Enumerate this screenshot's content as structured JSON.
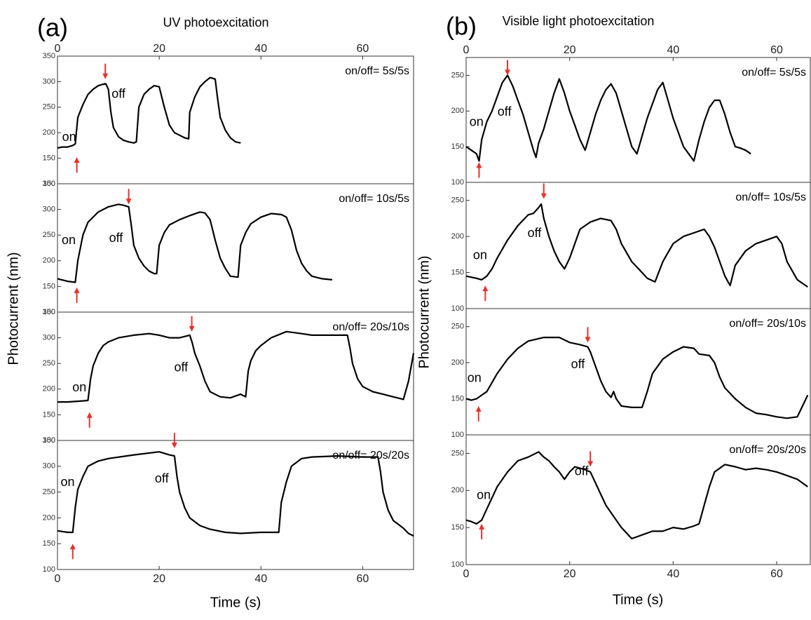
{
  "figure": {
    "columns": [
      {
        "label": "(a)",
        "title": "UV photoexcitation",
        "ylabel": "Photocurrent (nm)",
        "xlabel": "Time (s)"
      },
      {
        "label": "(b)",
        "title": "Visible light photoexcitation",
        "ylabel": "Photocurrent (nm)",
        "xlabel": "Time (s)"
      }
    ]
  },
  "chart_data": [
    {
      "type": "line",
      "annotation": "on/off= 5s/5s",
      "xlim": [
        0,
        70
      ],
      "ylim": [
        100,
        350
      ],
      "yticks": [
        100,
        150,
        200,
        250,
        300,
        350
      ],
      "xticks": [
        0,
        20,
        40,
        60
      ],
      "xtick_position": "top",
      "x": [
        0,
        1,
        2,
        3,
        3.5,
        4,
        5,
        6,
        7,
        8,
        9,
        9.5,
        10,
        10.5,
        11,
        12,
        13,
        14,
        15,
        15.5,
        16,
        17,
        18,
        19,
        20,
        21,
        22,
        23,
        24,
        25,
        25.8,
        26,
        27,
        28,
        29,
        30,
        31,
        31.5,
        32,
        33,
        34,
        35,
        36
      ],
      "series": [
        {
          "color": "#000000",
          "values": [
            170,
            172,
            172,
            175,
            178,
            230,
            255,
            275,
            285,
            292,
            295,
            296,
            285,
            240,
            210,
            192,
            185,
            182,
            180,
            182,
            250,
            275,
            285,
            292,
            290,
            250,
            215,
            200,
            195,
            190,
            188,
            240,
            270,
            290,
            300,
            308,
            305,
            265,
            230,
            205,
            190,
            182,
            180
          ]
        }
      ],
      "labels": [
        {
          "text": "on",
          "x": 2.3,
          "y": 190
        },
        {
          "text": "off",
          "x": 12,
          "y": 275
        }
      ],
      "arrows": [
        {
          "x": 3.8,
          "y": 152,
          "direction": "up",
          "color": "#e8302a"
        },
        {
          "x": 9.4,
          "y": 305,
          "direction": "down",
          "color": "#e8302a"
        }
      ]
    },
    {
      "type": "line",
      "annotation": "on/off= 10s/5s",
      "xlim": [
        0,
        70
      ],
      "ylim": [
        100,
        350
      ],
      "yticks": [
        100,
        150,
        200,
        250,
        300,
        350
      ],
      "x": [
        0,
        2,
        3.5,
        4,
        5,
        6,
        7,
        8,
        10,
        12,
        13,
        14,
        14.5,
        15,
        16,
        17,
        18,
        19,
        19.5,
        20,
        21,
        22,
        24,
        26,
        28,
        29,
        30,
        31,
        32,
        33,
        34,
        35.5,
        36,
        37,
        38,
        40,
        42,
        44,
        45,
        46,
        47,
        48,
        49,
        50,
        52,
        54
      ],
      "series": [
        {
          "color": "#000000",
          "values": [
            165,
            160,
            158,
            200,
            250,
            275,
            285,
            295,
            305,
            310,
            308,
            305,
            270,
            230,
            205,
            190,
            180,
            175,
            175,
            230,
            255,
            270,
            280,
            288,
            295,
            293,
            280,
            240,
            205,
            185,
            170,
            168,
            230,
            255,
            272,
            285,
            292,
            290,
            285,
            260,
            220,
            195,
            180,
            170,
            165,
            163
          ]
        }
      ],
      "labels": [
        {
          "text": "on",
          "x": 2.2,
          "y": 239
        },
        {
          "text": "off",
          "x": 11.5,
          "y": 243
        }
      ],
      "arrows": [
        {
          "x": 3.8,
          "y": 148,
          "direction": "up",
          "color": "#e8302a"
        },
        {
          "x": 14,
          "y": 310,
          "direction": "down",
          "color": "#e8302a"
        }
      ]
    },
    {
      "type": "line",
      "annotation": "on/off= 20s/10s",
      "xlim": [
        0,
        70
      ],
      "ylim": [
        100,
        350
      ],
      "yticks": [
        100,
        150,
        200,
        250,
        300,
        350
      ],
      "x": [
        0,
        2,
        5,
        6,
        6.5,
        7,
        8,
        9,
        10,
        12,
        15,
        18,
        20,
        22,
        24,
        26,
        26.5,
        27,
        28,
        29,
        30,
        32,
        34,
        36,
        37,
        37.5,
        38,
        39,
        40,
        42,
        45,
        48,
        50,
        52,
        54,
        57,
        57.5,
        58,
        59,
        60,
        62,
        64,
        66,
        68,
        69,
        70
      ],
      "series": [
        {
          "color": "#000000",
          "values": [
            175,
            175,
            177,
            178,
            220,
            245,
            270,
            285,
            292,
            300,
            305,
            308,
            305,
            300,
            300,
            305,
            290,
            270,
            245,
            215,
            195,
            185,
            183,
            190,
            185,
            235,
            255,
            275,
            285,
            300,
            312,
            308,
            305,
            305,
            305,
            305,
            280,
            250,
            220,
            205,
            195,
            190,
            185,
            180,
            215,
            270
          ]
        }
      ],
      "labels": [
        {
          "text": "on",
          "x": 4.3,
          "y": 202
        },
        {
          "text": "off",
          "x": 24.3,
          "y": 241
        }
      ],
      "arrows": [
        {
          "x": 6.3,
          "y": 155,
          "direction": "up",
          "color": "#e8302a"
        },
        {
          "x": 26.4,
          "y": 312,
          "direction": "down",
          "color": "#e8302a"
        }
      ]
    },
    {
      "type": "line",
      "annotation": "on/off= 20s/20s",
      "xlim": [
        0,
        70
      ],
      "ylim": [
        100,
        350
      ],
      "yticks": [
        100,
        150,
        200,
        250,
        300,
        350
      ],
      "xticks": [
        0,
        20,
        40,
        60
      ],
      "xtick_position": "bottom",
      "x": [
        0,
        2,
        3,
        3.5,
        4,
        5,
        6,
        8,
        10,
        15,
        20,
        22,
        23,
        23.5,
        24,
        25,
        26,
        28,
        30,
        33,
        36,
        40,
        43.5,
        44,
        45,
        46,
        48,
        50,
        55,
        60,
        63,
        63.5,
        64,
        65,
        66,
        68,
        69,
        70
      ],
      "series": [
        {
          "color": "#000000",
          "values": [
            175,
            172,
            172,
            220,
            255,
            280,
            300,
            310,
            315,
            322,
            328,
            322,
            320,
            280,
            250,
            220,
            200,
            185,
            178,
            172,
            170,
            172,
            172,
            230,
            270,
            300,
            315,
            318,
            320,
            318,
            318,
            290,
            250,
            215,
            195,
            180,
            170,
            165
          ]
        }
      ],
      "labels": [
        {
          "text": "on",
          "x": 2,
          "y": 268
        },
        {
          "text": "off",
          "x": 20.5,
          "y": 275
        }
      ],
      "arrows": [
        {
          "x": 3,
          "y": 150,
          "direction": "up",
          "color": "#e8302a"
        },
        {
          "x": 23,
          "y": 335,
          "direction": "down",
          "color": "#e8302a"
        }
      ]
    },
    {
      "type": "line",
      "annotation": "on/off= 5s/5s",
      "xlim": [
        0,
        66.5
      ],
      "ylim": [
        100,
        275
      ],
      "yticks": [
        100,
        150,
        200,
        250
      ],
      "xticks": [
        0,
        20,
        40,
        60
      ],
      "xtick_position": "top",
      "x": [
        0,
        1,
        2,
        2.5,
        3,
        4,
        5,
        6,
        7,
        8,
        9,
        10,
        11,
        12,
        13,
        13.5,
        14,
        15,
        16,
        17,
        18,
        19,
        20,
        21,
        22,
        23,
        24,
        25,
        26,
        27,
        28,
        29,
        30,
        31,
        32,
        33,
        34,
        35,
        36,
        37,
        38,
        39,
        40,
        41,
        42,
        43,
        44,
        45,
        46,
        47,
        48,
        49,
        50,
        51,
        52,
        53,
        54,
        55
      ],
      "series": [
        {
          "color": "#000000",
          "values": [
            150,
            145,
            140,
            130,
            160,
            185,
            200,
            220,
            240,
            250,
            235,
            215,
            195,
            170,
            145,
            135,
            155,
            175,
            200,
            225,
            245,
            225,
            200,
            180,
            160,
            145,
            170,
            195,
            215,
            230,
            238,
            225,
            200,
            175,
            150,
            140,
            165,
            190,
            210,
            230,
            240,
            215,
            190,
            170,
            150,
            140,
            130,
            160,
            185,
            205,
            215,
            215,
            195,
            170,
            150,
            148,
            145,
            140
          ]
        }
      ],
      "labels": [
        {
          "text": "on",
          "x": 2,
          "y": 184
        },
        {
          "text": "off",
          "x": 7.4,
          "y": 198
        }
      ],
      "arrows": [
        {
          "x": 2.5,
          "y": 128,
          "direction": "up",
          "color": "#e8302a"
        },
        {
          "x": 8,
          "y": 250,
          "direction": "down",
          "color": "#e8302a"
        }
      ]
    },
    {
      "type": "line",
      "annotation": "on/off= 10s/5s",
      "xlim": [
        0,
        66.5
      ],
      "ylim": [
        100,
        275
      ],
      "yticks": [
        100,
        150,
        200,
        250
      ],
      "x": [
        0,
        2,
        3,
        4,
        5,
        6,
        8,
        10,
        12,
        13,
        14,
        14.5,
        15,
        16,
        17,
        18,
        19,
        20,
        21,
        22,
        24,
        26,
        28,
        29,
        30,
        32,
        34,
        35,
        36.5,
        38,
        40,
        42,
        44,
        46,
        47,
        48,
        49,
        50,
        51,
        52,
        54,
        56,
        58,
        60,
        61,
        62,
        64,
        66
      ],
      "series": [
        {
          "color": "#000000",
          "values": [
            145,
            142,
            140,
            145,
            155,
            170,
            195,
            215,
            230,
            232,
            240,
            245,
            225,
            200,
            180,
            165,
            155,
            170,
            190,
            210,
            220,
            225,
            222,
            210,
            190,
            165,
            150,
            142,
            137,
            165,
            190,
            200,
            205,
            210,
            200,
            185,
            165,
            145,
            132,
            160,
            180,
            190,
            195,
            200,
            190,
            165,
            140,
            130
          ]
        }
      ],
      "labels": [
        {
          "text": "on",
          "x": 2.7,
          "y": 173
        },
        {
          "text": "off",
          "x": 13.2,
          "y": 204
        }
      ],
      "arrows": [
        {
          "x": 3.7,
          "y": 132,
          "direction": "up",
          "color": "#e8302a"
        },
        {
          "x": 15,
          "y": 252,
          "direction": "down",
          "color": "#e8302a"
        }
      ]
    },
    {
      "type": "line",
      "annotation": "on/off= 20s/10s",
      "xlim": [
        0,
        66.5
      ],
      "ylim": [
        100,
        275
      ],
      "yticks": [
        100,
        150,
        200,
        250
      ],
      "x": [
        0,
        1,
        2,
        3,
        4,
        6,
        8,
        10,
        12,
        15,
        18,
        20,
        22,
        23.5,
        24,
        25,
        26,
        27,
        28,
        28.5,
        29,
        30,
        32,
        34,
        35,
        36,
        38,
        40,
        42,
        44,
        45,
        47,
        48,
        49,
        50,
        52,
        54,
        56,
        58,
        60,
        62,
        64,
        65,
        66
      ],
      "series": [
        {
          "color": "#000000",
          "values": [
            150,
            148,
            150,
            155,
            160,
            185,
            205,
            220,
            230,
            235,
            235,
            228,
            225,
            222,
            215,
            195,
            175,
            160,
            152,
            160,
            150,
            140,
            138,
            138,
            160,
            185,
            205,
            215,
            222,
            220,
            212,
            210,
            200,
            180,
            165,
            150,
            138,
            130,
            128,
            125,
            123,
            125,
            140,
            155
          ]
        }
      ],
      "labels": [
        {
          "text": "on",
          "x": 1.6,
          "y": 178
        },
        {
          "text": "off",
          "x": 21.6,
          "y": 197
        }
      ],
      "arrows": [
        {
          "x": 2.4,
          "y": 140,
          "direction": "up",
          "color": "#e8302a"
        },
        {
          "x": 23.5,
          "y": 228,
          "direction": "down",
          "color": "#e8302a"
        }
      ]
    },
    {
      "type": "line",
      "annotation": "on/off= 20s/20s",
      "xlim": [
        0,
        66.5
      ],
      "ylim": [
        100,
        275
      ],
      "yticks": [
        100,
        150,
        200,
        250
      ],
      "xticks": [
        0,
        20,
        40,
        60
      ],
      "xtick_position": "bottom",
      "x": [
        0,
        1,
        2,
        3,
        4,
        5,
        6,
        8,
        10,
        12,
        14,
        15,
        16,
        17,
        18,
        19,
        20,
        21,
        22,
        23,
        24,
        25,
        26,
        27,
        28,
        30,
        32,
        34,
        36,
        38,
        40,
        42,
        44,
        45,
        46,
        47,
        48,
        50,
        52,
        54,
        56,
        58,
        60,
        62,
        64,
        66
      ],
      "series": [
        {
          "color": "#000000",
          "values": [
            160,
            158,
            155,
            160,
            175,
            190,
            205,
            225,
            240,
            245,
            252,
            245,
            240,
            232,
            225,
            215,
            225,
            232,
            230,
            228,
            225,
            210,
            195,
            180,
            170,
            150,
            135,
            140,
            145,
            145,
            150,
            148,
            152,
            155,
            180,
            205,
            225,
            235,
            232,
            228,
            230,
            228,
            225,
            220,
            215,
            205
          ]
        }
      ],
      "labels": [
        {
          "text": "on",
          "x": 3.4,
          "y": 193
        },
        {
          "text": "off",
          "x": 22.3,
          "y": 225
        }
      ],
      "arrows": [
        {
          "x": 3,
          "y": 155,
          "direction": "up",
          "color": "#e8302a"
        },
        {
          "x": 24,
          "y": 232,
          "direction": "down",
          "color": "#e8302a"
        }
      ]
    }
  ]
}
